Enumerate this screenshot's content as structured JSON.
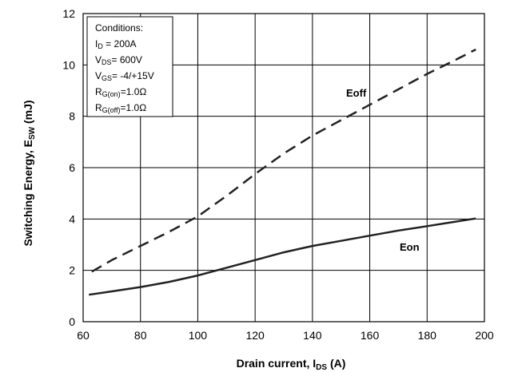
{
  "chart_data": {
    "type": "line",
    "xlabel": {
      "main": "Drain current, I",
      "sub": "DS",
      "unit": " (A)"
    },
    "ylabel": {
      "main": "Switching Energy, E",
      "sub": "SW",
      "unit": " (mJ)"
    },
    "xlim": [
      60,
      200
    ],
    "ylim": [
      0,
      12
    ],
    "xticks": [
      60,
      80,
      100,
      120,
      140,
      160,
      180,
      200
    ],
    "yticks": [
      0,
      2,
      4,
      6,
      8,
      10,
      12
    ],
    "grid": true,
    "series": [
      {
        "name": "Eoff",
        "style": "dashed",
        "x": [
          63,
          70,
          80,
          90,
          100,
          110,
          120,
          130,
          140,
          150,
          160,
          170,
          180,
          190,
          197
        ],
        "y": [
          1.95,
          2.4,
          2.95,
          3.5,
          4.1,
          4.9,
          5.75,
          6.55,
          7.25,
          7.85,
          8.45,
          9.05,
          9.65,
          10.2,
          10.6
        ]
      },
      {
        "name": "Eon",
        "style": "solid",
        "x": [
          62,
          70,
          80,
          90,
          100,
          110,
          120,
          130,
          140,
          150,
          160,
          170,
          180,
          190,
          197
        ],
        "y": [
          1.05,
          1.18,
          1.35,
          1.55,
          1.8,
          2.1,
          2.4,
          2.7,
          2.95,
          3.15,
          3.35,
          3.55,
          3.72,
          3.9,
          4.02
        ]
      }
    ],
    "conditions": {
      "title": "Conditions:",
      "lines": [
        {
          "main": "I",
          "sub": "D",
          "rest": " = 200A"
        },
        {
          "main": "V",
          "sub": "DS",
          "rest": "= 600V"
        },
        {
          "main": "V",
          "sub": "GS",
          "rest": "= -4/+15V"
        },
        {
          "main": "R",
          "sub": "G(on)",
          "rest": "=1.0Ω"
        },
        {
          "main": "R",
          "sub": "G(off)",
          "rest": "=1.0Ω"
        }
      ]
    },
    "annotations": {
      "eoff": "Eoff",
      "eon": "Eon"
    }
  }
}
